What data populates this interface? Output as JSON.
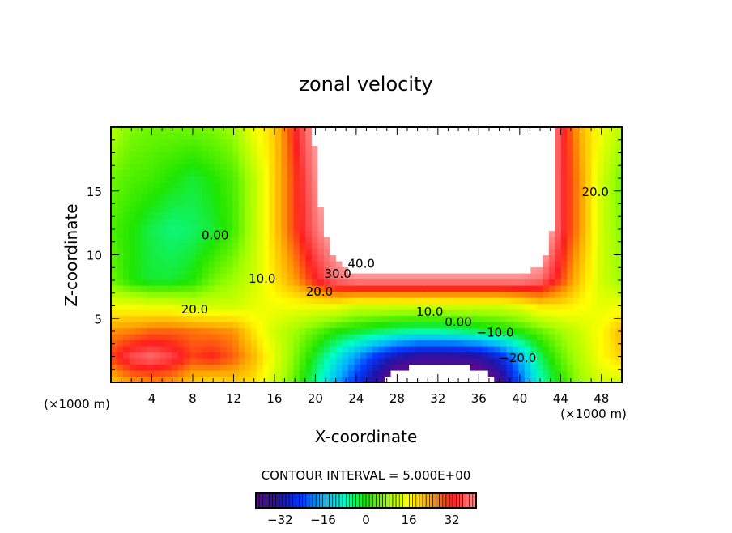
{
  "chart_data": {
    "type": "heatmap",
    "title": "zonal velocity",
    "xlabel": "X-coordinate",
    "ylabel": "Z-coordinate",
    "x_unit_label": "(×1000 m)",
    "y_unit_label": "(×1000 m)",
    "xlim": [
      0,
      50
    ],
    "ylim": [
      0,
      20
    ],
    "x_ticks": [
      "4",
      "8",
      "12",
      "16",
      "20",
      "24",
      "28",
      "32",
      "36",
      "40",
      "44",
      "48"
    ],
    "x_tick_values": [
      4,
      8,
      12,
      16,
      20,
      24,
      28,
      32,
      36,
      40,
      44,
      48
    ],
    "y_ticks": [
      "5",
      "10",
      "15"
    ],
    "y_tick_values": [
      5,
      10,
      15
    ],
    "contour_interval_text": "CONTOUR INTERVAL = 5.000E+00",
    "contour_interval": 5,
    "colorbar": {
      "range": [
        -41,
        41
      ],
      "ticks": [
        "−32",
        "−16",
        "0",
        "16",
        "32"
      ],
      "tick_values": [
        -32,
        -16,
        0,
        16,
        32
      ]
    },
    "contour_labels": [
      {
        "text": "0.00",
        "x": 10.2,
        "z": 11.2
      },
      {
        "text": "10.0",
        "x": 14.8,
        "z": 7.8
      },
      {
        "text": "20.0",
        "x": 8.2,
        "z": 5.4
      },
      {
        "text": "20.0",
        "x": 20.4,
        "z": 6.8
      },
      {
        "text": "30.0",
        "x": 22.2,
        "z": 8.2
      },
      {
        "text": "40.0",
        "x": 24.5,
        "z": 9.0
      },
      {
        "text": "10.0",
        "x": 31.2,
        "z": 5.2
      },
      {
        "text": "0.00",
        "x": 34.0,
        "z": 4.4
      },
      {
        "text": "−10.0",
        "x": 37.6,
        "z": 3.6
      },
      {
        "text": "−20.0",
        "x": 39.8,
        "z": 1.6
      },
      {
        "text": "20.0",
        "x": 47.4,
        "z": 14.6
      }
    ],
    "grid_x": [
      0,
      2,
      4,
      6,
      8,
      10,
      12,
      14,
      16,
      18,
      20,
      22,
      24,
      26,
      28,
      30,
      32,
      34,
      36,
      38,
      40,
      42,
      44,
      46,
      48,
      50
    ],
    "grid_z": [
      20,
      16,
      12,
      8,
      6,
      4,
      2,
      0
    ],
    "values": [
      [
        10,
        6,
        5,
        5,
        5,
        6,
        8,
        15,
        20,
        32,
        42,
        50,
        50,
        50,
        50,
        50,
        50,
        50,
        50,
        50,
        50,
        50,
        35,
        22,
        15,
        10
      ],
      [
        5,
        3,
        2,
        0,
        -2,
        0,
        3,
        10,
        20,
        30,
        40,
        50,
        50,
        50,
        50,
        50,
        50,
        50,
        50,
        50,
        50,
        50,
        35,
        24,
        12,
        5
      ],
      [
        3,
        0,
        -3,
        -5,
        -4,
        -2,
        2,
        10,
        20,
        30,
        38,
        45,
        50,
        50,
        50,
        50,
        50,
        50,
        50,
        50,
        50,
        50,
        35,
        24,
        12,
        6
      ],
      [
        5,
        0,
        -2,
        -2,
        0,
        5,
        8,
        12,
        18,
        24,
        32,
        38,
        40,
        40,
        40,
        40,
        40,
        40,
        40,
        40,
        40,
        38,
        30,
        20,
        12,
        8
      ],
      [
        15,
        15,
        14,
        14,
        12,
        12,
        12,
        14,
        15,
        15,
        15,
        15,
        12,
        12,
        12,
        12,
        12,
        12,
        12,
        12,
        14,
        18,
        18,
        16,
        14,
        15
      ],
      [
        25,
        26,
        28,
        28,
        27,
        26,
        25,
        18,
        12,
        8,
        4,
        0,
        -2,
        -4,
        -6,
        -7,
        -7,
        -6,
        -4,
        -2,
        0,
        4,
        8,
        12,
        16,
        22
      ],
      [
        30,
        36,
        38,
        35,
        30,
        32,
        28,
        22,
        14,
        6,
        -2,
        -10,
        -18,
        -26,
        -32,
        -36,
        -36,
        -36,
        -34,
        -28,
        -16,
        -4,
        4,
        10,
        16,
        20
      ],
      [
        20,
        24,
        25,
        24,
        20,
        18,
        20,
        18,
        12,
        4,
        -6,
        -16,
        -26,
        -36,
        -50,
        -50,
        -50,
        -50,
        -50,
        -40,
        -22,
        -8,
        0,
        8,
        12,
        12
      ]
    ]
  }
}
